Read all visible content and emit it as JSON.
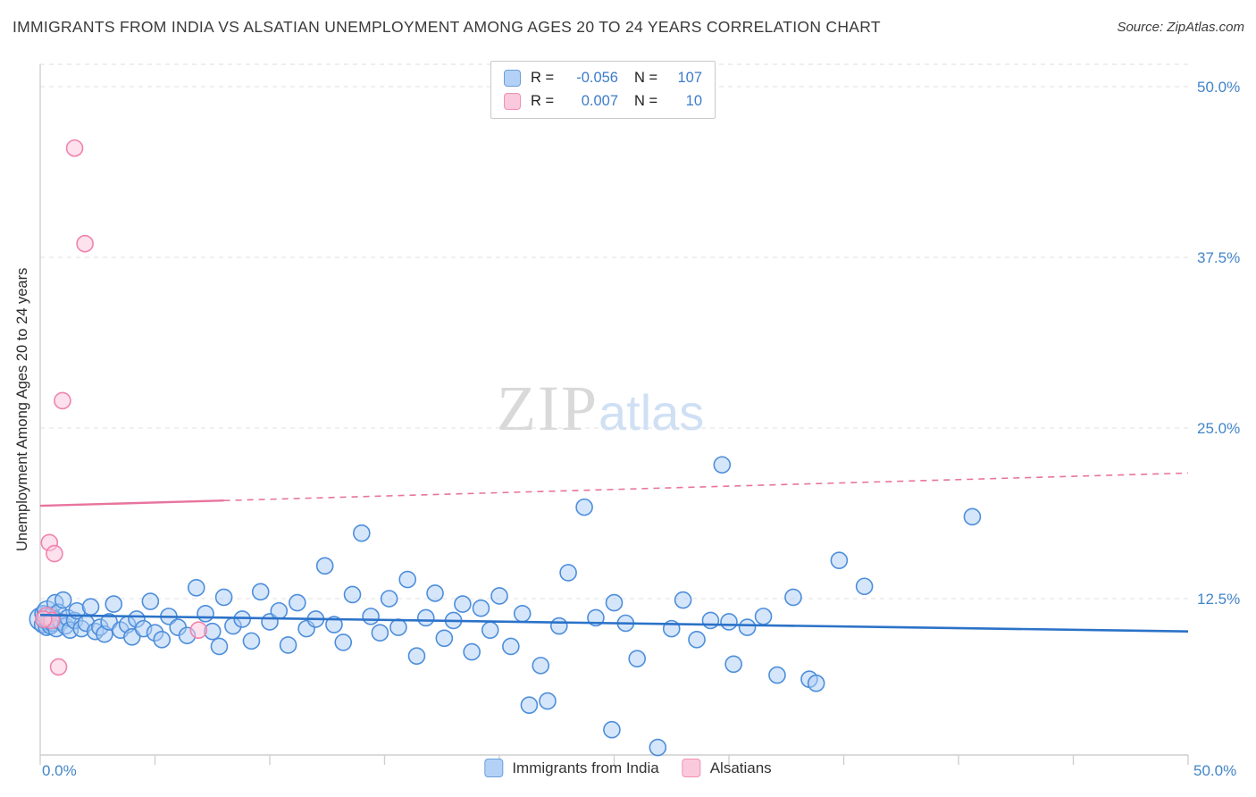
{
  "title": "IMMIGRANTS FROM INDIA VS ALSATIAN UNEMPLOYMENT AMONG AGES 20 TO 24 YEARS CORRELATION CHART",
  "source": "Source: ZipAtlas.com",
  "watermark": {
    "zip": "ZIP",
    "atlas": "atlas"
  },
  "legend_box": {
    "rows": [
      {
        "r_label": "R =",
        "r_value": "-0.056",
        "n_label": "N =",
        "n_value": "107"
      },
      {
        "r_label": "R =",
        "r_value": "0.007",
        "n_label": "N =",
        "n_value": "10"
      }
    ]
  },
  "axes": {
    "y_label": "Unemployment Among Ages 20 to 24 years",
    "y_ticks": [
      "50.0%",
      "37.5%",
      "25.0%",
      "12.5%"
    ],
    "x_min_label": "0.0%",
    "x_max_label": "50.0%"
  },
  "bottom_legend": {
    "items": [
      {
        "label": "Immigrants from India"
      },
      {
        "label": "Alsatians"
      }
    ]
  },
  "chart_data": {
    "type": "scatter",
    "title": "Immigrants from India vs Alsatian Unemployment Among Ages 20 to 24 years Correlation Chart",
    "xlabel": "",
    "ylabel": "Unemployment Among Ages 20 to 24 years",
    "x_range": [
      0,
      50
    ],
    "y_range": [
      0,
      50
    ],
    "y_grid": [
      12.5,
      25,
      37.5,
      50
    ],
    "x_tick_step": 5,
    "grid_style": "dashed",
    "series": [
      {
        "name": "Immigrants from India",
        "R": -0.056,
        "N": 107,
        "fill": "#aecdf5",
        "stroke": "#4d8edb",
        "fill_opacity": 0.5,
        "points": [
          [
            0.05,
            11.0,
            13
          ],
          [
            0.1,
            10.6
          ],
          [
            0.12,
            11.4
          ],
          [
            0.18,
            10.9
          ],
          [
            0.22,
            11.2
          ],
          [
            0.28,
            10.4
          ],
          [
            0.3,
            11.6,
            11
          ],
          [
            0.35,
            10.8
          ],
          [
            0.4,
            11.1
          ],
          [
            0.45,
            10.5
          ],
          [
            0.5,
            11.3
          ],
          [
            0.55,
            10.7
          ],
          [
            0.6,
            11.0
          ],
          [
            0.65,
            12.2
          ],
          [
            0.7,
            10.3
          ],
          [
            0.8,
            11.5
          ],
          [
            0.9,
            10.8
          ],
          [
            1.0,
            12.4
          ],
          [
            1.1,
            10.5
          ],
          [
            1.2,
            11.1
          ],
          [
            1.3,
            10.2
          ],
          [
            1.5,
            10.9
          ],
          [
            1.6,
            11.6
          ],
          [
            1.8,
            10.3
          ],
          [
            2.0,
            10.7
          ],
          [
            2.2,
            11.9
          ],
          [
            2.4,
            10.1
          ],
          [
            2.6,
            10.4
          ],
          [
            2.8,
            9.9
          ],
          [
            3.0,
            10.8
          ],
          [
            3.2,
            12.1
          ],
          [
            3.5,
            10.2
          ],
          [
            3.8,
            10.6
          ],
          [
            4.0,
            9.7
          ],
          [
            4.2,
            11.0
          ],
          [
            4.5,
            10.3
          ],
          [
            4.8,
            12.3
          ],
          [
            5.0,
            10.0
          ],
          [
            5.3,
            9.5
          ],
          [
            5.6,
            11.2
          ],
          [
            6.0,
            10.4
          ],
          [
            6.4,
            9.8
          ],
          [
            6.8,
            13.3
          ],
          [
            7.2,
            11.4
          ],
          [
            7.5,
            10.1
          ],
          [
            7.8,
            9.0
          ],
          [
            8.0,
            12.6
          ],
          [
            8.4,
            10.5
          ],
          [
            8.8,
            11.0
          ],
          [
            9.2,
            9.4
          ],
          [
            9.6,
            13.0
          ],
          [
            10.0,
            10.8
          ],
          [
            10.4,
            11.6
          ],
          [
            10.8,
            9.1
          ],
          [
            11.2,
            12.2
          ],
          [
            11.6,
            10.3
          ],
          [
            12.0,
            11.0
          ],
          [
            12.4,
            14.9
          ],
          [
            12.8,
            10.6
          ],
          [
            13.2,
            9.3
          ],
          [
            13.6,
            12.8
          ],
          [
            14.0,
            17.3
          ],
          [
            14.4,
            11.2
          ],
          [
            14.8,
            10.0
          ],
          [
            15.2,
            12.5
          ],
          [
            15.6,
            10.4
          ],
          [
            16.0,
            13.9
          ],
          [
            16.4,
            8.3
          ],
          [
            16.8,
            11.1
          ],
          [
            17.2,
            12.9
          ],
          [
            17.6,
            9.6
          ],
          [
            18.0,
            10.9
          ],
          [
            18.4,
            12.1
          ],
          [
            18.8,
            8.6
          ],
          [
            19.2,
            11.8
          ],
          [
            19.6,
            10.2
          ],
          [
            20.0,
            12.7
          ],
          [
            20.5,
            9.0
          ],
          [
            21.0,
            11.4
          ],
          [
            21.3,
            4.7
          ],
          [
            21.8,
            7.6
          ],
          [
            22.1,
            5.0
          ],
          [
            22.6,
            10.5
          ],
          [
            23.0,
            14.4
          ],
          [
            23.7,
            19.2
          ],
          [
            24.2,
            11.1
          ],
          [
            24.9,
            2.9
          ],
          [
            25.5,
            10.7
          ],
          [
            26.0,
            8.1
          ],
          [
            26.9,
            1.6
          ],
          [
            27.5,
            10.3
          ],
          [
            28.0,
            12.4
          ],
          [
            28.6,
            9.5
          ],
          [
            29.2,
            10.9
          ],
          [
            29.7,
            22.3
          ],
          [
            30.2,
            7.7
          ],
          [
            30.8,
            10.4
          ],
          [
            31.5,
            11.2
          ],
          [
            32.1,
            6.9
          ],
          [
            32.8,
            12.6
          ],
          [
            33.5,
            6.6
          ],
          [
            33.8,
            6.3
          ],
          [
            34.8,
            15.3
          ],
          [
            35.9,
            13.4
          ],
          [
            40.6,
            18.5
          ],
          [
            25.0,
            12.2
          ],
          [
            30.0,
            10.8
          ]
        ]
      },
      {
        "name": "Alsatians",
        "R": 0.007,
        "N": 10,
        "fill": "#fbc9dc",
        "stroke": "#ef84ad",
        "fill_opacity": 0.55,
        "points": [
          [
            1.5,
            45.5
          ],
          [
            1.95,
            38.5
          ],
          [
            0.97,
            27.0
          ],
          [
            0.4,
            16.6
          ],
          [
            0.62,
            15.8
          ],
          [
            0.3,
            11.2,
            10
          ],
          [
            0.5,
            10.9
          ],
          [
            0.15,
            11.0
          ],
          [
            0.8,
            7.5
          ],
          [
            6.9,
            10.2
          ]
        ]
      }
    ],
    "trend_lines": [
      {
        "series": "Immigrants from India",
        "color": "#2b72c8",
        "style": "solid",
        "x_start": 0,
        "y_start": 11.3,
        "x_end": 50,
        "y_end": 10.1
      },
      {
        "series": "Alsatians",
        "color": "#e8749e",
        "style": "solid-then-dashed",
        "solid_until_x": 8,
        "x_start": 0,
        "y_start": 19.3,
        "x_end": 50,
        "y_end": 21.7
      }
    ],
    "legend_position": "bottom"
  }
}
